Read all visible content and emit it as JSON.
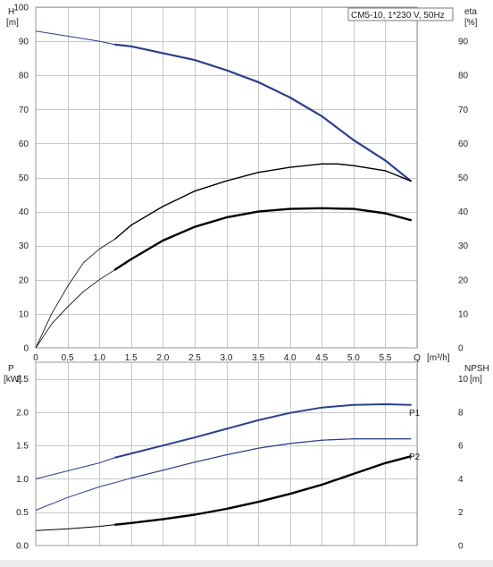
{
  "title_box": "CM5-10, 1*230 V, 50Hz",
  "colors": {
    "head": "#2a3f8f",
    "eta": "#000000",
    "p1": "#2a3f8f",
    "p2": "#2a3f8f",
    "npsh": "#000000",
    "grid": "#c8c8c8"
  },
  "chart_data": [
    {
      "type": "line",
      "panel": "upper",
      "left_axis": {
        "label": "H",
        "unit": "[m]",
        "ylim": [
          0,
          100
        ],
        "ticks": [
          "0",
          "10",
          "20",
          "30",
          "40",
          "50",
          "60",
          "70",
          "80",
          "90",
          "100"
        ]
      },
      "right_axis": {
        "label": "eta",
        "unit": "[%]",
        "ylim": [
          0,
          100
        ],
        "ticks": [
          "0",
          "10",
          "20",
          "30",
          "40",
          "50",
          "60",
          "70",
          "80",
          "90"
        ]
      },
      "x_axis": {
        "label": "Q",
        "unit": "[m³/h]",
        "xlim": [
          0,
          6.0
        ],
        "ticks": [
          "0",
          "0.5",
          "1.0",
          "1.5",
          "2.0",
          "2.5",
          "3.0",
          "3.5",
          "4.0",
          "4.5",
          "5.0",
          "5.5",
          "Q"
        ]
      },
      "operating_range": [
        1.25,
        5.9
      ],
      "grid": true,
      "series": [
        {
          "key": "head",
          "x": [
            0,
            0.5,
            1.0,
            1.25,
            1.5,
            2.0,
            2.5,
            3.0,
            3.5,
            4.0,
            4.5,
            5.0,
            5.5,
            5.9
          ],
          "y": [
            93,
            91.5,
            90,
            89,
            88.5,
            86.5,
            84.5,
            81.5,
            78,
            73.5,
            68,
            61,
            55,
            49
          ]
        },
        {
          "key": "eta_a",
          "x": [
            0,
            0.25,
            0.5,
            0.75,
            1.0,
            1.25,
            1.5,
            2.0,
            2.5,
            3.0,
            3.5,
            4.0,
            4.5,
            4.75,
            5.0,
            5.5,
            5.9
          ],
          "y": [
            0,
            10,
            18,
            25,
            29,
            32,
            36,
            41.5,
            46,
            49,
            51.5,
            53,
            54,
            54,
            53.5,
            52,
            49
          ]
        },
        {
          "key": "eta_b",
          "x": [
            0,
            0.25,
            0.5,
            0.75,
            1.0,
            1.25,
            1.5,
            2.0,
            2.5,
            3.0,
            3.5,
            4.0,
            4.5,
            5.0,
            5.5,
            5.9
          ],
          "y": [
            0,
            7,
            12,
            16.5,
            20,
            23,
            26,
            31.5,
            35.5,
            38.3,
            40,
            40.8,
            41,
            40.8,
            39.5,
            37.5
          ]
        }
      ]
    },
    {
      "type": "line",
      "panel": "lower",
      "left_axis": {
        "label": "P",
        "unit": "[kW]",
        "ylim": [
          0,
          2.75
        ],
        "ticks": [
          "0.0",
          "0.5",
          "1.0",
          "1.5",
          "2.0",
          "2.5"
        ]
      },
      "right_axis": {
        "label": "NPSH",
        "unit": "[m]",
        "ylim": [
          0,
          11
        ],
        "ticks": [
          "0",
          "2",
          "4",
          "6",
          "8",
          "10"
        ]
      },
      "x_axis": {
        "xlim": [
          0,
          6.0
        ]
      },
      "operating_range": [
        1.25,
        5.9
      ],
      "grid": true,
      "annotations": [
        "P1",
        "P2"
      ],
      "series": [
        {
          "key": "p1",
          "name": "P1",
          "x": [
            0,
            0.5,
            1.0,
            1.25,
            1.5,
            2.0,
            2.5,
            3.0,
            3.5,
            4.0,
            4.5,
            5.0,
            5.5,
            5.9
          ],
          "y": [
            1.0,
            1.12,
            1.24,
            1.32,
            1.38,
            1.5,
            1.62,
            1.75,
            1.88,
            1.99,
            2.07,
            2.11,
            2.12,
            2.11
          ]
        },
        {
          "key": "p2",
          "name": "P2",
          "x": [
            0,
            0.5,
            1.0,
            1.5,
            2.0,
            2.5,
            3.0,
            3.5,
            4.0,
            4.5,
            5.0,
            5.5,
            5.9
          ],
          "y": [
            0.53,
            0.72,
            0.88,
            1.01,
            1.13,
            1.25,
            1.36,
            1.46,
            1.53,
            1.58,
            1.6,
            1.6,
            1.6
          ]
        },
        {
          "key": "npsh",
          "axis": "right",
          "x": [
            0,
            0.5,
            1.0,
            1.25,
            1.5,
            2.0,
            2.5,
            3.0,
            3.5,
            4.0,
            4.5,
            5.0,
            5.5,
            5.9
          ],
          "y": [
            0.9,
            1.0,
            1.15,
            1.25,
            1.35,
            1.58,
            1.85,
            2.2,
            2.62,
            3.1,
            3.65,
            4.3,
            4.95,
            5.35
          ]
        }
      ]
    }
  ]
}
